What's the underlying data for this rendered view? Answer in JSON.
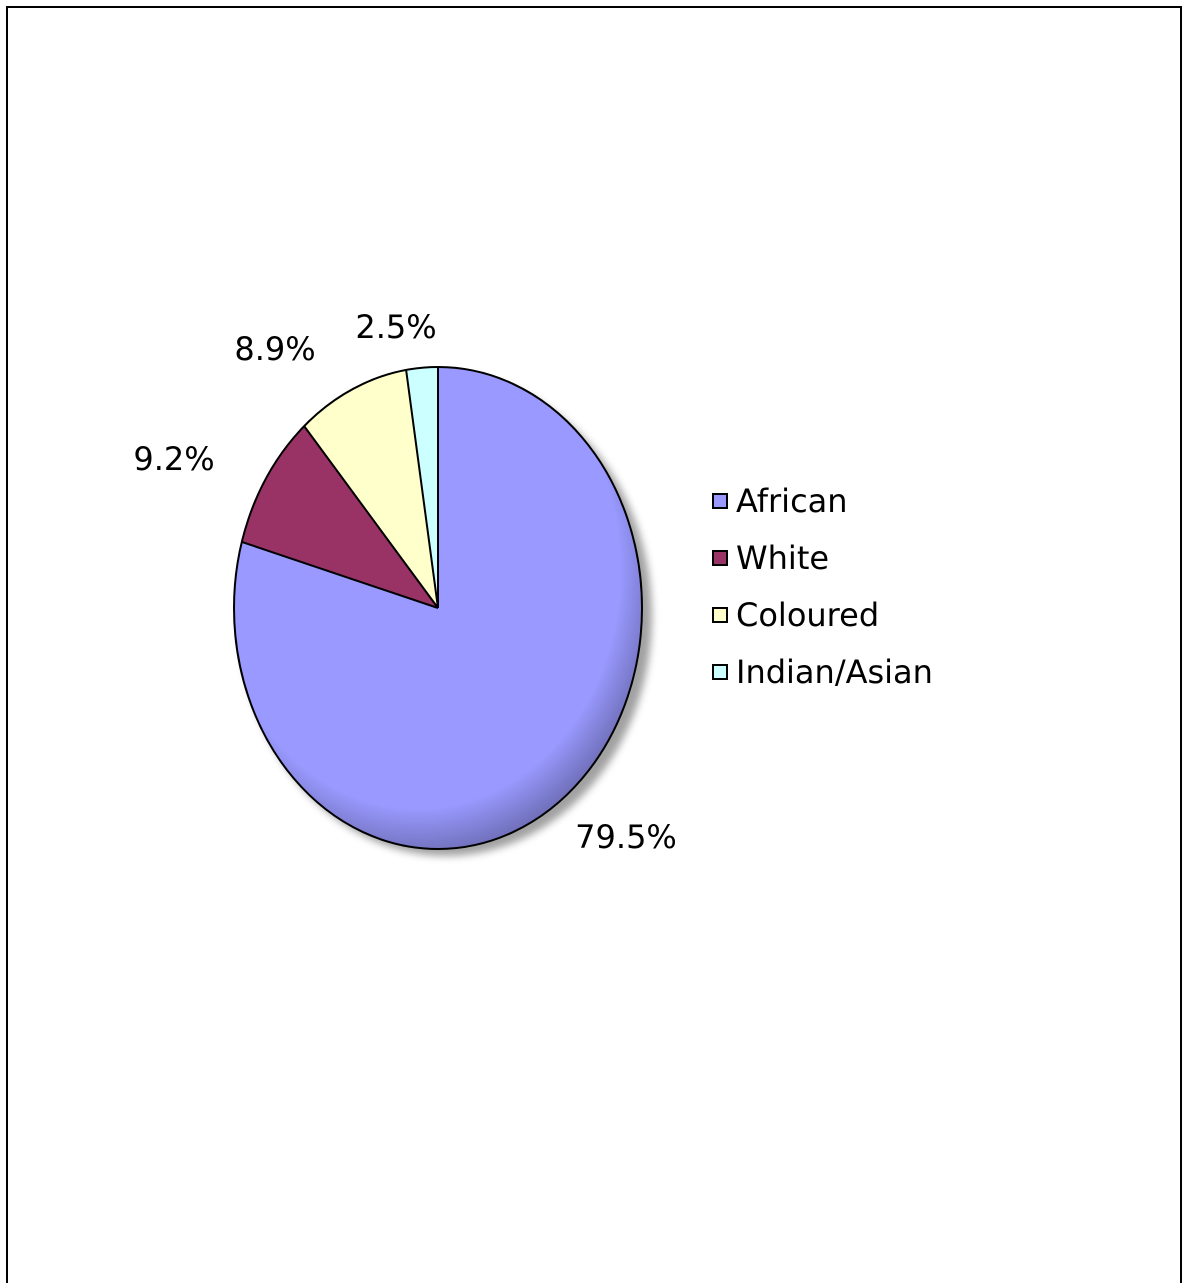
{
  "chart_data": {
    "type": "pie",
    "categories": [
      "African",
      "White",
      "Coloured",
      "Indian/Asian"
    ],
    "values": [
      79.5,
      9.2,
      8.9,
      2.5
    ],
    "value_labels": [
      "79.5%",
      "9.2%",
      "8.9%",
      "2.5%"
    ],
    "colors": [
      "#9999ff",
      "#993366",
      "#ffffcc",
      "#ccffff"
    ],
    "legend_position": "right",
    "start_angle": "12 o'clock",
    "direction": "clockwise"
  }
}
